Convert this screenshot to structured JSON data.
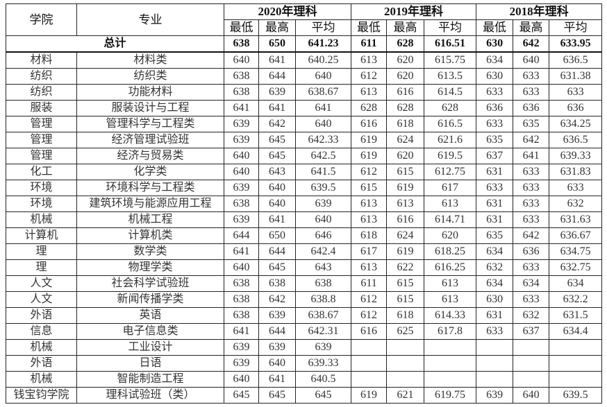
{
  "header": {
    "college": "学院",
    "major": "专业",
    "years": [
      "2020年理科",
      "2019年理科",
      "2018年理科"
    ],
    "sub": [
      "最低",
      "最高",
      "平均"
    ]
  },
  "total": {
    "label": "总计",
    "values": [
      "638",
      "650",
      "641.23",
      "611",
      "628",
      "616.51",
      "630",
      "642",
      "633.95"
    ]
  },
  "rows": [
    {
      "college": "材料",
      "major": "材料类",
      "values": [
        "640",
        "641",
        "640.25",
        "613",
        "620",
        "615.75",
        "634",
        "640",
        "636.5"
      ]
    },
    {
      "college": "纺织",
      "major": "纺织类",
      "values": [
        "638",
        "644",
        "640",
        "612",
        "620",
        "613.5",
        "630",
        "633",
        "631.38"
      ]
    },
    {
      "college": "纺织",
      "major": "功能材料",
      "values": [
        "638",
        "639",
        "638.67",
        "613",
        "616",
        "614.5",
        "633",
        "633",
        "633"
      ]
    },
    {
      "college": "服装",
      "major": "服装设计与工程",
      "values": [
        "641",
        "641",
        "641",
        "628",
        "628",
        "628",
        "636",
        "636",
        "636"
      ]
    },
    {
      "college": "管理",
      "major": "管理科学与工程类",
      "values": [
        "639",
        "642",
        "640",
        "616",
        "618",
        "616.5",
        "633",
        "635",
        "634.25"
      ]
    },
    {
      "college": "管理",
      "major": "经济管理试验班",
      "values": [
        "639",
        "645",
        "642.33",
        "619",
        "624",
        "621.6",
        "635",
        "642",
        "636.5"
      ]
    },
    {
      "college": "管理",
      "major": "经济与贸易类",
      "values": [
        "640",
        "645",
        "642.5",
        "619",
        "620",
        "619.5",
        "637",
        "641",
        "639.33"
      ]
    },
    {
      "college": "化工",
      "major": "化学类",
      "values": [
        "640",
        "643",
        "641.5",
        "612",
        "615",
        "612.75",
        "631",
        "633",
        "631.83"
      ]
    },
    {
      "college": "环境",
      "major": "环境科学与工程类",
      "values": [
        "639",
        "640",
        "639.5",
        "615",
        "619",
        "617",
        "633",
        "633",
        "633"
      ]
    },
    {
      "college": "环境",
      "major": "建筑环境与能源应用工程",
      "values": [
        "638",
        "640",
        "639",
        "613",
        "613",
        "613",
        "631",
        "633",
        "632"
      ]
    },
    {
      "college": "机械",
      "major": "机械工程",
      "values": [
        "639",
        "641",
        "640",
        "613",
        "616",
        "614.71",
        "631",
        "633",
        "631.63"
      ]
    },
    {
      "college": "计算机",
      "major": "计算机类",
      "values": [
        "644",
        "650",
        "646",
        "618",
        "624",
        "620",
        "635",
        "642",
        "636.67"
      ]
    },
    {
      "college": "理",
      "major": "数学类",
      "values": [
        "641",
        "644",
        "642.4",
        "617",
        "619",
        "618.25",
        "634",
        "636",
        "634.75"
      ]
    },
    {
      "college": "理",
      "major": "物理学类",
      "values": [
        "640",
        "645",
        "643",
        "613",
        "622",
        "616.25",
        "632",
        "633",
        "632.75"
      ]
    },
    {
      "college": "人文",
      "major": "社会科学试验班",
      "values": [
        "638",
        "638",
        "638",
        "611",
        "615",
        "613",
        "634",
        "634",
        "634"
      ]
    },
    {
      "college": "人文",
      "major": "新闻传播学类",
      "values": [
        "638",
        "642",
        "638.8",
        "612",
        "615",
        "613",
        "630",
        "633",
        "632.2"
      ]
    },
    {
      "college": "外语",
      "major": "英语",
      "values": [
        "638",
        "639",
        "638.67",
        "612",
        "618",
        "614.33",
        "631",
        "632",
        "631.5"
      ]
    },
    {
      "college": "信息",
      "major": "电子信息类",
      "values": [
        "641",
        "644",
        "642.31",
        "616",
        "625",
        "617.8",
        "633",
        "637",
        "634.4"
      ]
    },
    {
      "college": "机械",
      "major": "工业设计",
      "values": [
        "639",
        "639",
        "639",
        "",
        "",
        "",
        "",
        "",
        ""
      ]
    },
    {
      "college": "外语",
      "major": "日语",
      "values": [
        "639",
        "640",
        "639.33",
        "",
        "",
        "",
        "",
        "",
        ""
      ]
    },
    {
      "college": "机械",
      "major": "智能制造工程",
      "values": [
        "640",
        "641",
        "640.5",
        "",
        "",
        "",
        "",
        "",
        ""
      ]
    },
    {
      "college": "钱宝钧学院",
      "major": "理科试验班（类）",
      "values": [
        "645",
        "645",
        "645",
        "619",
        "621",
        "619.75",
        "639",
        "640",
        "639.5"
      ]
    }
  ]
}
